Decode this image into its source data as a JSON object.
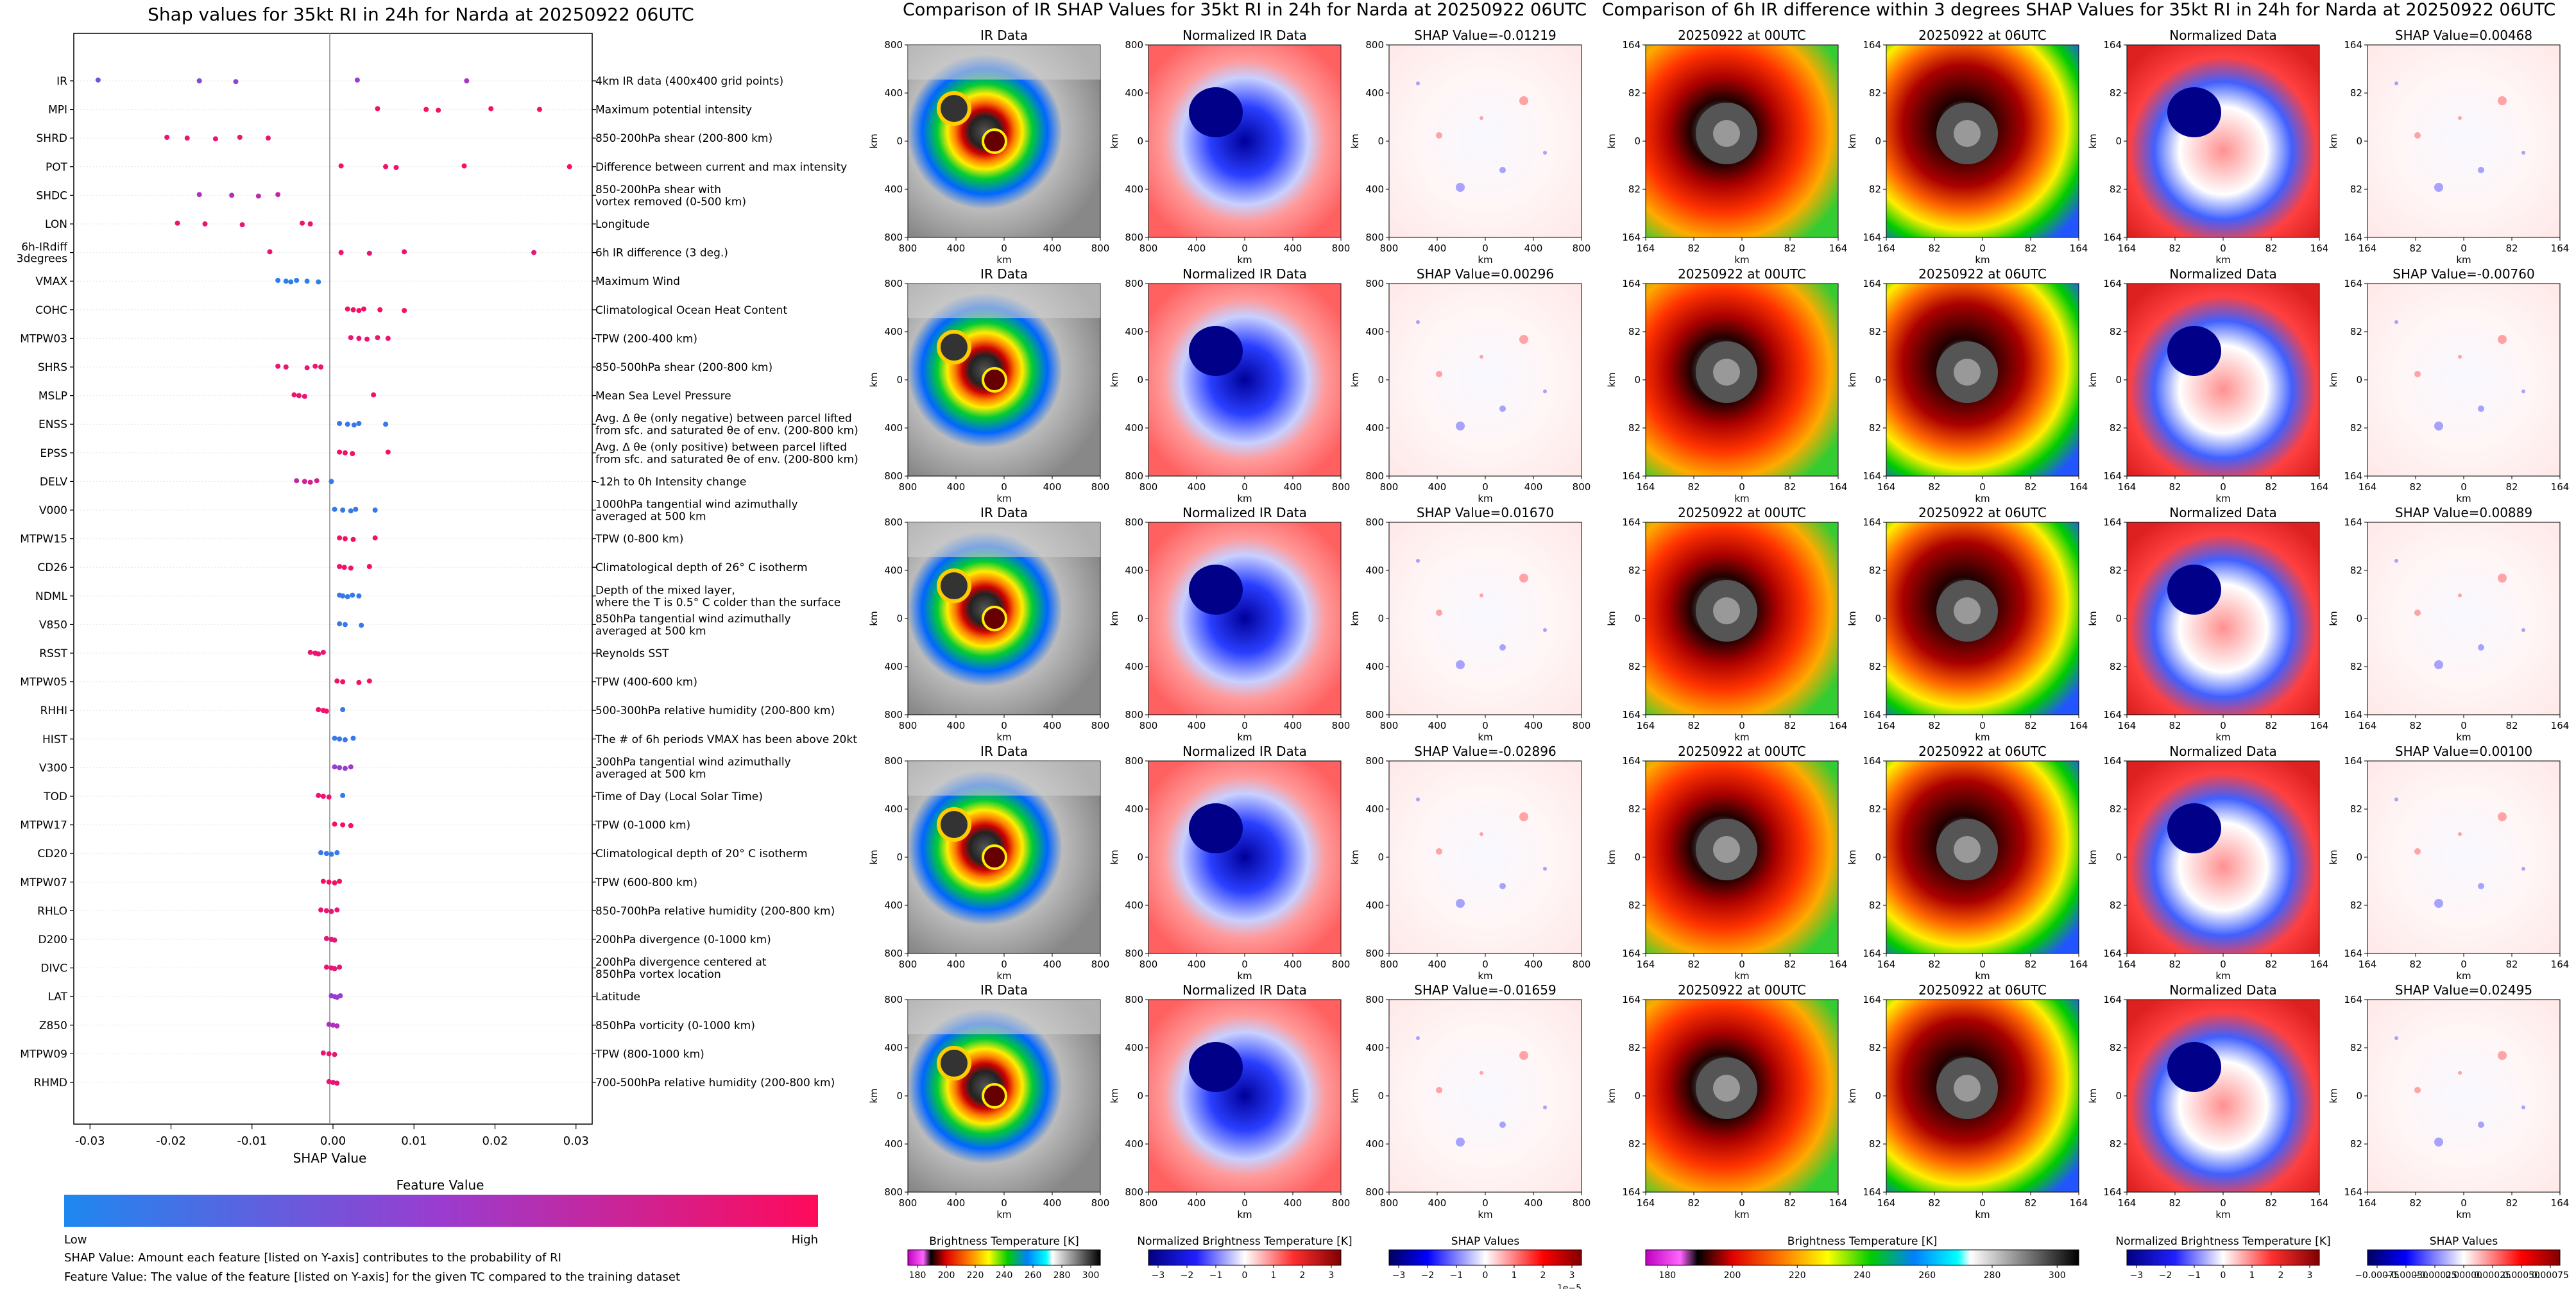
{
  "beeswarm": {
    "title": "Shap values for 35kt RI in 24h for Narda at 20250922 06UTC",
    "xlabel": "SHAP Value",
    "xticks": [
      "-0.03",
      "-0.02",
      "-0.01",
      "0.00",
      "0.01",
      "0.02",
      "0.03"
    ],
    "features": [
      {
        "name": "IR",
        "desc": [
          "4km IR data (400x400 grid points)"
        ]
      },
      {
        "name": "MPI",
        "desc": [
          "Maximum potential intensity"
        ]
      },
      {
        "name": "SHRD",
        "desc": [
          "850-200hPa shear (200-800 km)"
        ]
      },
      {
        "name": "POT",
        "desc": [
          "Difference between current and max intensity"
        ]
      },
      {
        "name": "SHDC",
        "desc": [
          "850-200hPa shear with",
          "vortex removed (0-500 km)"
        ]
      },
      {
        "name": "LON",
        "desc": [
          "Longitude"
        ]
      },
      {
        "name": "6h-IRdiff 3degrees",
        "desc": [
          "6h IR difference (3 deg.)"
        ]
      },
      {
        "name": "VMAX",
        "desc": [
          "Maximum Wind"
        ]
      },
      {
        "name": "COHC",
        "desc": [
          "Climatological Ocean Heat Content"
        ]
      },
      {
        "name": "MTPW03",
        "desc": [
          "TPW (200-400 km)"
        ]
      },
      {
        "name": "SHRS",
        "desc": [
          "850-500hPa shear (200-800 km)"
        ]
      },
      {
        "name": "MSLP",
        "desc": [
          "Mean Sea Level Pressure"
        ]
      },
      {
        "name": "ENSS",
        "desc": [
          "Avg. Δ θe (only negative) between parcel lifted",
          "from sfc. and saturated θe of env. (200-800 km)"
        ]
      },
      {
        "name": "EPSS",
        "desc": [
          "Avg. Δ θe (only positive) between parcel lifted",
          "from sfc. and saturated θe of env. (200-800 km)"
        ]
      },
      {
        "name": "DELV",
        "desc": [
          "-12h to 0h Intensity change"
        ]
      },
      {
        "name": "V000",
        "desc": [
          "1000hPa tangential wind azimuthally",
          "averaged at 500 km"
        ]
      },
      {
        "name": "MTPW15",
        "desc": [
          "TPW (0-800 km)"
        ]
      },
      {
        "name": "CD26",
        "desc": [
          "Climatological depth of 26° C isotherm"
        ]
      },
      {
        "name": "NDML",
        "desc": [
          "Depth of the mixed layer,",
          "where the T is 0.5° C colder than the surface"
        ]
      },
      {
        "name": "V850",
        "desc": [
          "850hPa tangential wind azimuthally",
          "averaged at 500 km"
        ]
      },
      {
        "name": "RSST",
        "desc": [
          "Reynolds SST"
        ]
      },
      {
        "name": "MTPW05",
        "desc": [
          "TPW (400-600 km)"
        ]
      },
      {
        "name": "RHHI",
        "desc": [
          "500-300hPa relative humidity (200-800 km)"
        ]
      },
      {
        "name": "HIST",
        "desc": [
          "The # of 6h periods VMAX has been above 20kt"
        ]
      },
      {
        "name": "V300",
        "desc": [
          "300hPa tangential wind azimuthally",
          "averaged at 500 km"
        ]
      },
      {
        "name": "TOD",
        "desc": [
          "Time of Day (Local Solar Time)"
        ]
      },
      {
        "name": "MTPW17",
        "desc": [
          "TPW (0-1000 km)"
        ]
      },
      {
        "name": "CD20",
        "desc": [
          "Climatological depth of 20° C isotherm"
        ]
      },
      {
        "name": "MTPW07",
        "desc": [
          "TPW (600-800 km)"
        ]
      },
      {
        "name": "RHLO",
        "desc": [
          "850-700hPa relative humidity (200-800 km)"
        ]
      },
      {
        "name": "D200",
        "desc": [
          "200hPa divergence (0-1000 km)"
        ]
      },
      {
        "name": "DIVC",
        "desc": [
          "200hPa divergence centered at",
          "850hPa vortex location"
        ]
      },
      {
        "name": "LAT",
        "desc": [
          "Latitude"
        ]
      },
      {
        "name": "Z850",
        "desc": [
          "850hPa vorticity (0-1000 km)"
        ]
      },
      {
        "name": "MTPW09",
        "desc": [
          "TPW (800-1000 km)"
        ]
      },
      {
        "name": "RHMD",
        "desc": [
          "700-500hPa relative humidity (200-800 km)"
        ]
      }
    ],
    "colorbar_title": "Feature Value",
    "colorbar_low": "Low",
    "colorbar_high": "High",
    "note1": "SHAP Value: Amount each feature [listed on Y-axis] contributes to the probability of RI",
    "note2": "Feature Value: The value of the feature [listed on Y-axis] for the given TC compared to the training dataset"
  },
  "chart_data": {
    "type": "scatter",
    "title": "Shap values for 35kt RI in 24h for Narda at 20250922 06UTC",
    "xlabel": "SHAP Value",
    "xlim": [
      -0.032,
      0.032
    ],
    "colors": {
      "low": "#1e88f0",
      "high": "#ff0a5a",
      "mid": "#9a3ccf"
    },
    "series": [
      {
        "feature": "IR",
        "points": [
          [
            -0.029,
            0.35
          ],
          [
            -0.0165,
            0.4
          ],
          [
            -0.012,
            0.45
          ],
          [
            0.003,
            0.5
          ],
          [
            0.0165,
            0.55
          ]
        ]
      },
      {
        "feature": "MPI",
        "points": [
          [
            0.0055,
            0.95
          ],
          [
            0.0115,
            0.95
          ],
          [
            0.013,
            0.95
          ],
          [
            0.0195,
            0.95
          ],
          [
            0.0255,
            0.95
          ]
        ]
      },
      {
        "feature": "SHRD",
        "points": [
          [
            -0.0205,
            0.9
          ],
          [
            -0.018,
            0.9
          ],
          [
            -0.0145,
            0.9
          ],
          [
            -0.0115,
            0.9
          ],
          [
            -0.008,
            0.9
          ]
        ]
      },
      {
        "feature": "POT",
        "points": [
          [
            0.001,
            0.95
          ],
          [
            0.0065,
            0.95
          ],
          [
            0.0078,
            0.95
          ],
          [
            0.0162,
            0.95
          ],
          [
            0.0292,
            0.95
          ]
        ]
      },
      {
        "feature": "SHDC",
        "points": [
          [
            -0.0165,
            0.6
          ],
          [
            -0.0125,
            0.62
          ],
          [
            -0.0092,
            0.65
          ],
          [
            -0.0068,
            0.7
          ]
        ]
      },
      {
        "feature": "LON",
        "points": [
          [
            -0.0192,
            0.9
          ],
          [
            -0.0158,
            0.9
          ],
          [
            -0.0112,
            0.9
          ],
          [
            -0.0038,
            0.9
          ],
          [
            -0.0028,
            0.9
          ]
        ]
      },
      {
        "feature": "6h-IRdiff 3degrees",
        "points": [
          [
            -0.0078,
            0.9
          ],
          [
            0.001,
            0.9
          ],
          [
            0.0045,
            0.9
          ],
          [
            0.0088,
            0.9
          ],
          [
            0.0248,
            0.85
          ]
        ]
      },
      {
        "feature": "VMAX",
        "points": [
          [
            -0.0068,
            0.05
          ],
          [
            -0.0058,
            0.05
          ],
          [
            -0.0052,
            0.05
          ],
          [
            -0.0045,
            0.05
          ],
          [
            -0.0032,
            0.05
          ],
          [
            -0.0018,
            0.05
          ]
        ]
      },
      {
        "feature": "COHC",
        "points": [
          [
            0.0018,
            0.95
          ],
          [
            0.0025,
            0.95
          ],
          [
            0.0032,
            0.95
          ],
          [
            0.0038,
            0.95
          ],
          [
            0.0058,
            0.95
          ],
          [
            0.0088,
            0.95
          ]
        ]
      },
      {
        "feature": "MTPW03",
        "points": [
          [
            0.0022,
            0.9
          ],
          [
            0.0032,
            0.9
          ],
          [
            0.0042,
            0.9
          ],
          [
            0.0055,
            0.9
          ],
          [
            0.0068,
            0.9
          ]
        ]
      },
      {
        "feature": "SHRS",
        "points": [
          [
            -0.0068,
            0.9
          ],
          [
            -0.0058,
            0.9
          ],
          [
            -0.0032,
            0.9
          ],
          [
            -0.0022,
            0.9
          ],
          [
            -0.0015,
            0.9
          ]
        ]
      },
      {
        "feature": "MSLP",
        "points": [
          [
            -0.0048,
            0.9
          ],
          [
            -0.0042,
            0.9
          ],
          [
            -0.0035,
            0.9
          ],
          [
            0.005,
            0.92
          ]
        ]
      },
      {
        "feature": "ENSS",
        "points": [
          [
            0.0008,
            0.1
          ],
          [
            0.0018,
            0.1
          ],
          [
            0.0026,
            0.1
          ],
          [
            0.0032,
            0.1
          ],
          [
            0.0065,
            0.1
          ]
        ]
      },
      {
        "feature": "EPSS",
        "points": [
          [
            0.0008,
            0.95
          ],
          [
            0.0015,
            0.95
          ],
          [
            0.0024,
            0.95
          ],
          [
            0.0068,
            0.95
          ]
        ]
      },
      {
        "feature": "DELV",
        "points": [
          [
            -0.0045,
            0.7
          ],
          [
            -0.0035,
            0.75
          ],
          [
            -0.0028,
            0.8
          ],
          [
            -0.002,
            0.8
          ],
          [
            -0.0002,
            0.1
          ]
        ]
      },
      {
        "feature": "V000",
        "points": [
          [
            0.0002,
            0.1
          ],
          [
            0.0012,
            0.1
          ],
          [
            0.0022,
            0.1
          ],
          [
            0.0028,
            0.1
          ],
          [
            0.0052,
            0.1
          ]
        ]
      },
      {
        "feature": "MTPW15",
        "points": [
          [
            0.0008,
            0.95
          ],
          [
            0.0015,
            0.95
          ],
          [
            0.0025,
            0.95
          ],
          [
            0.0052,
            0.95
          ]
        ]
      },
      {
        "feature": "CD26",
        "points": [
          [
            0.0008,
            0.95
          ],
          [
            0.0014,
            0.95
          ],
          [
            0.0022,
            0.95
          ],
          [
            0.0045,
            0.95
          ]
        ]
      },
      {
        "feature": "NDML",
        "points": [
          [
            0.0008,
            0.1
          ],
          [
            0.0012,
            0.1
          ],
          [
            0.0018,
            0.1
          ],
          [
            0.0024,
            0.1
          ],
          [
            0.0032,
            0.1
          ]
        ]
      },
      {
        "feature": "V850",
        "points": [
          [
            0.0008,
            0.1
          ],
          [
            0.0015,
            0.1
          ],
          [
            0.0035,
            0.1
          ]
        ]
      },
      {
        "feature": "RSST",
        "points": [
          [
            -0.0028,
            0.9
          ],
          [
            -0.0022,
            0.9
          ],
          [
            -0.0018,
            0.9
          ],
          [
            -0.0012,
            0.9
          ]
        ]
      },
      {
        "feature": "MTPW05",
        "points": [
          [
            0.0005,
            0.95
          ],
          [
            0.0012,
            0.95
          ],
          [
            0.0032,
            0.95
          ],
          [
            0.0045,
            0.95
          ]
        ]
      },
      {
        "feature": "RHHI",
        "points": [
          [
            -0.0018,
            0.9
          ],
          [
            -0.0012,
            0.9
          ],
          [
            -0.0008,
            0.9
          ],
          [
            0.0012,
            0.1
          ]
        ]
      },
      {
        "feature": "HIST",
        "points": [
          [
            0.0002,
            0.1
          ],
          [
            0.0008,
            0.1
          ],
          [
            0.0015,
            0.1
          ],
          [
            0.0025,
            0.1
          ]
        ]
      },
      {
        "feature": "V300",
        "points": [
          [
            0.0002,
            0.5
          ],
          [
            0.0008,
            0.5
          ],
          [
            0.0015,
            0.5
          ],
          [
            0.0022,
            0.55
          ]
        ]
      },
      {
        "feature": "TOD",
        "points": [
          [
            -0.0018,
            0.9
          ],
          [
            -0.0012,
            0.9
          ],
          [
            -0.0005,
            0.9
          ],
          [
            0.0012,
            0.1
          ]
        ]
      },
      {
        "feature": "MTPW17",
        "points": [
          [
            0.0002,
            0.95
          ],
          [
            0.0012,
            0.95
          ],
          [
            0.0022,
            0.95
          ]
        ]
      },
      {
        "feature": "CD20",
        "points": [
          [
            -0.0015,
            0.1
          ],
          [
            -0.0008,
            0.1
          ],
          [
            -0.0002,
            0.1
          ],
          [
            0.0005,
            0.1
          ]
        ]
      },
      {
        "feature": "MTPW07",
        "points": [
          [
            -0.0012,
            0.95
          ],
          [
            -0.0005,
            0.95
          ],
          [
            0.0002,
            0.95
          ],
          [
            0.0008,
            0.95
          ]
        ]
      },
      {
        "feature": "RHLO",
        "points": [
          [
            -0.0015,
            0.9
          ],
          [
            -0.0008,
            0.9
          ],
          [
            -0.0002,
            0.9
          ],
          [
            0.0005,
            0.9
          ]
        ]
      },
      {
        "feature": "D200",
        "points": [
          [
            -0.0008,
            0.85
          ],
          [
            -0.0002,
            0.85
          ],
          [
            0.0002,
            0.85
          ]
        ]
      },
      {
        "feature": "DIVC",
        "points": [
          [
            -0.0008,
            0.9
          ],
          [
            -0.0002,
            0.9
          ],
          [
            0.0002,
            0.9
          ],
          [
            0.0008,
            0.9
          ]
        ]
      },
      {
        "feature": "LAT",
        "points": [
          [
            -0.0002,
            0.5
          ],
          [
            0.0002,
            0.5
          ],
          [
            0.0005,
            0.5
          ],
          [
            0.0009,
            0.5
          ]
        ]
      },
      {
        "feature": "Z850",
        "points": [
          [
            -0.0005,
            0.6
          ],
          [
            0.0,
            0.6
          ],
          [
            0.0005,
            0.6
          ]
        ]
      },
      {
        "feature": "MTPW09",
        "points": [
          [
            -0.0012,
            0.9
          ],
          [
            -0.0005,
            0.9
          ],
          [
            0.0002,
            0.9
          ]
        ]
      },
      {
        "feature": "RHMD",
        "points": [
          [
            -0.0005,
            0.9
          ],
          [
            0.0,
            0.9
          ],
          [
            0.0005,
            0.9
          ]
        ]
      }
    ]
  },
  "ir_comparison": {
    "title": "Comparison of IR SHAP Values for 35kt RI in 24h for Narda at 20250922 06UTC",
    "col_titles": [
      "IR Data",
      "Normalized IR Data"
    ],
    "shap_titles": [
      "SHAP Value=-0.01219",
      "SHAP Value=0.00296",
      "SHAP Value=0.01670",
      "SHAP Value=-0.02896",
      "SHAP Value=-0.01659"
    ],
    "axis_label": "km",
    "ticks": [
      "800",
      "400",
      "0",
      "400",
      "800"
    ],
    "colorbars": [
      {
        "label": "Brightness Temperature [K]",
        "ticks": [
          "180",
          "200",
          "220",
          "240",
          "260",
          "280",
          "300"
        ]
      },
      {
        "label": "Normalized Brightness Temperature [K]",
        "ticks": [
          "−3",
          "−2",
          "−1",
          "0",
          "1",
          "2",
          "3"
        ]
      },
      {
        "label": "SHAP Values",
        "ticks": [
          "−3",
          "−2",
          "−1",
          "0",
          "1",
          "2",
          "3"
        ],
        "extra": "1e−5"
      }
    ]
  },
  "diff_comparison": {
    "title": "Comparison of 6h IR difference within 3 degrees SHAP Values for 35kt RI in 24h for Narda at 20250922 06UTC",
    "col_titles": [
      "20250922 at 00UTC",
      "20250922 at 06UTC",
      "Normalized Data"
    ],
    "shap_titles": [
      "SHAP Value=0.00468",
      "SHAP Value=-0.00760",
      "SHAP Value=0.00889",
      "SHAP Value=0.00100",
      "SHAP Value=0.02495"
    ],
    "axis_label": "km",
    "ticks": [
      "164",
      "82",
      "0",
      "82",
      "164"
    ],
    "colorbars": [
      {
        "label": "Brightness Temperature [K]",
        "ticks": [
          "180",
          "200",
          "220",
          "240",
          "260",
          "280",
          "300"
        ]
      },
      {
        "label": "Normalized Brightness Temperature [K]",
        "ticks": [
          "−3",
          "−2",
          "−1",
          "0",
          "1",
          "2",
          "3"
        ]
      },
      {
        "label": "SHAP Values",
        "ticks": [
          "−0.00075",
          "−0.00050",
          "−0.00025",
          "0.00000",
          "0.00025",
          "0.00050",
          "0.00075"
        ]
      }
    ]
  },
  "colors": {
    "high": "#ff0a5a",
    "low": "#1e88f0",
    "grid": "#dddddd"
  }
}
